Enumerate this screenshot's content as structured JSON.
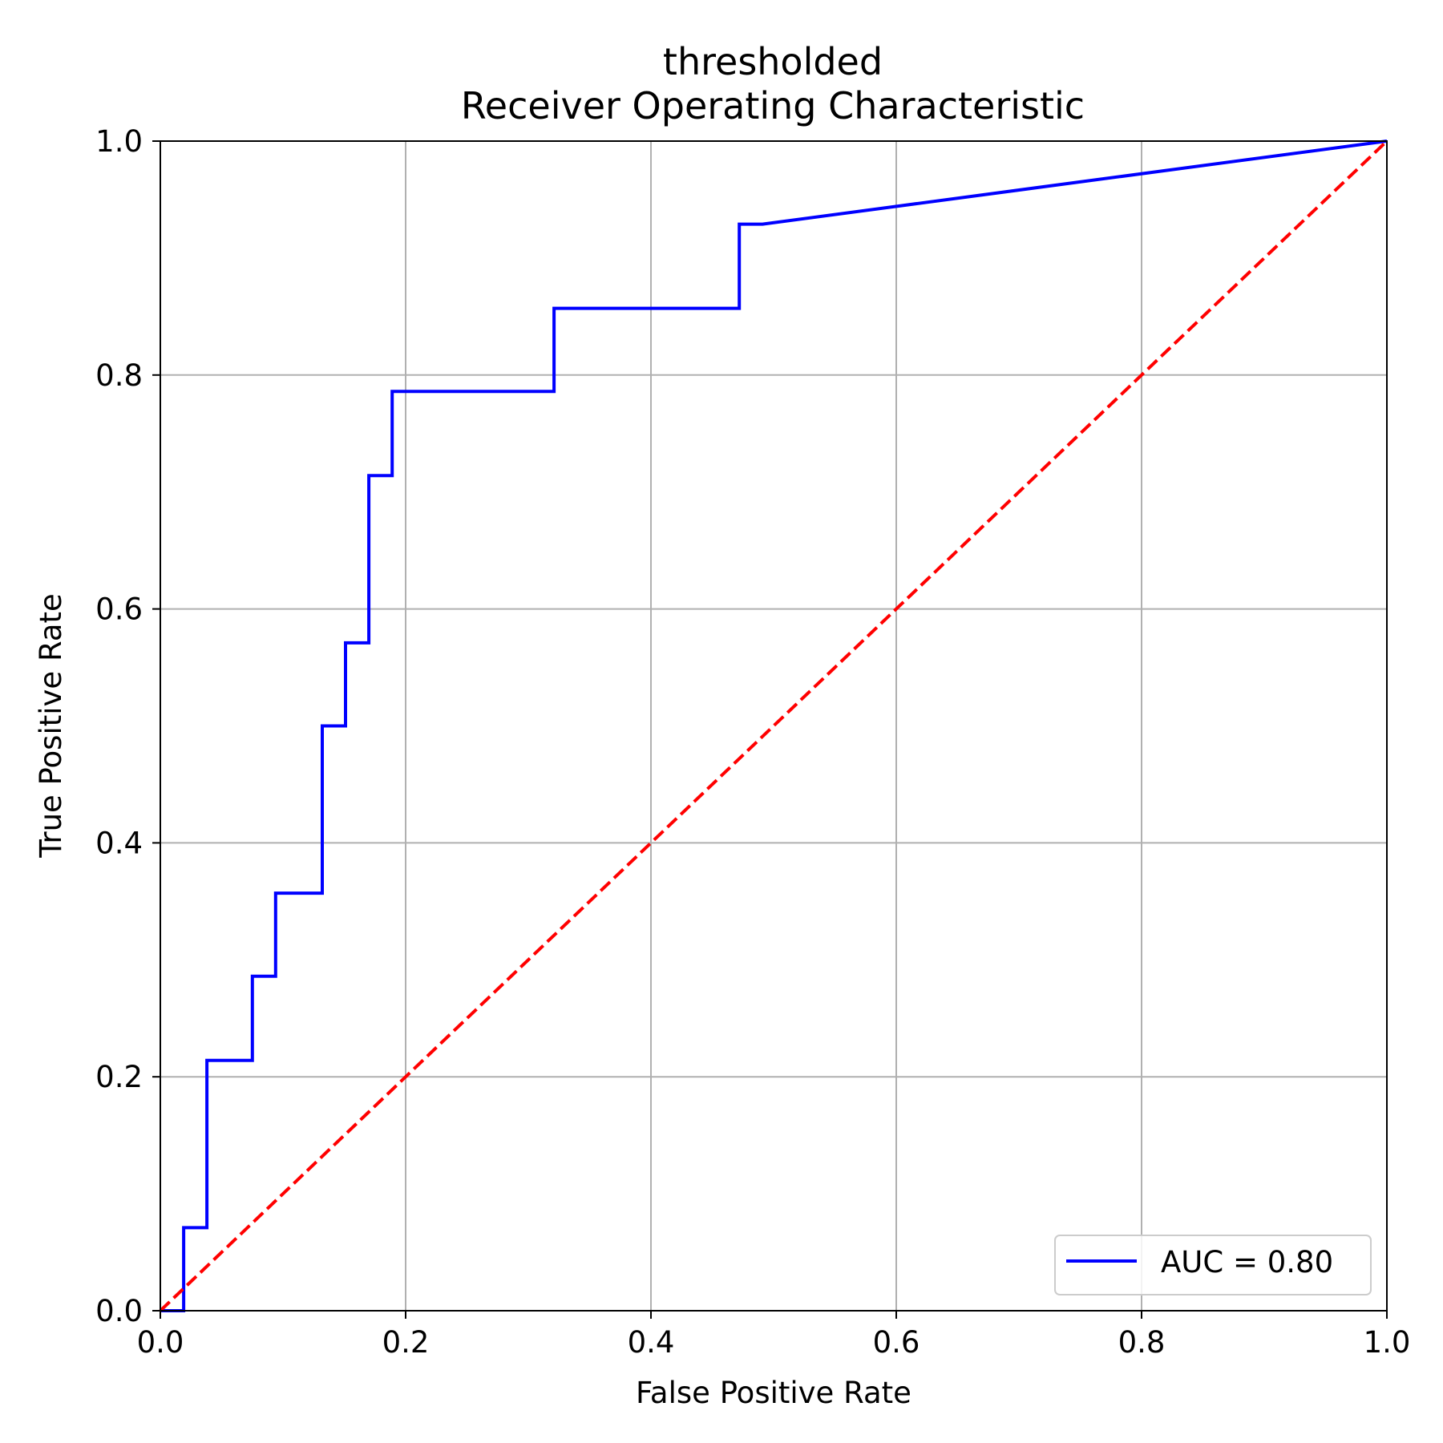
{
  "chart_data": {
    "type": "line",
    "title": [
      "thresholded",
      "Receiver Operating Characteristic"
    ],
    "xlabel": "False Positive Rate",
    "ylabel": "True Positive Rate",
    "xlim": [
      0.0,
      1.0
    ],
    "ylim": [
      0.0,
      1.0
    ],
    "xticks": [
      "0.0",
      "0.2",
      "0.4",
      "0.6",
      "0.8",
      "1.0"
    ],
    "yticks": [
      "0.0",
      "0.2",
      "0.4",
      "0.6",
      "0.8",
      "1.0"
    ],
    "grid": true,
    "legend_position": "bottom-right",
    "series": [
      {
        "name": "AUC = 0.80",
        "color": "#0000ff",
        "style": "solid",
        "x": [
          0.0,
          0.019,
          0.019,
          0.038,
          0.038,
          0.075,
          0.075,
          0.094,
          0.094,
          0.132,
          0.132,
          0.151,
          0.151,
          0.17,
          0.17,
          0.189,
          0.189,
          0.321,
          0.321,
          0.472,
          0.472,
          0.491,
          1.0
        ],
        "y": [
          0.0,
          0.0,
          0.071,
          0.071,
          0.214,
          0.214,
          0.286,
          0.286,
          0.357,
          0.357,
          0.5,
          0.5,
          0.571,
          0.571,
          0.714,
          0.714,
          0.786,
          0.786,
          0.857,
          0.857,
          0.929,
          0.929,
          1.0
        ]
      },
      {
        "color": "#ff0000",
        "style": "dashed",
        "x": [
          0.0,
          1.0
        ],
        "y": [
          0.0,
          1.0
        ]
      }
    ]
  }
}
